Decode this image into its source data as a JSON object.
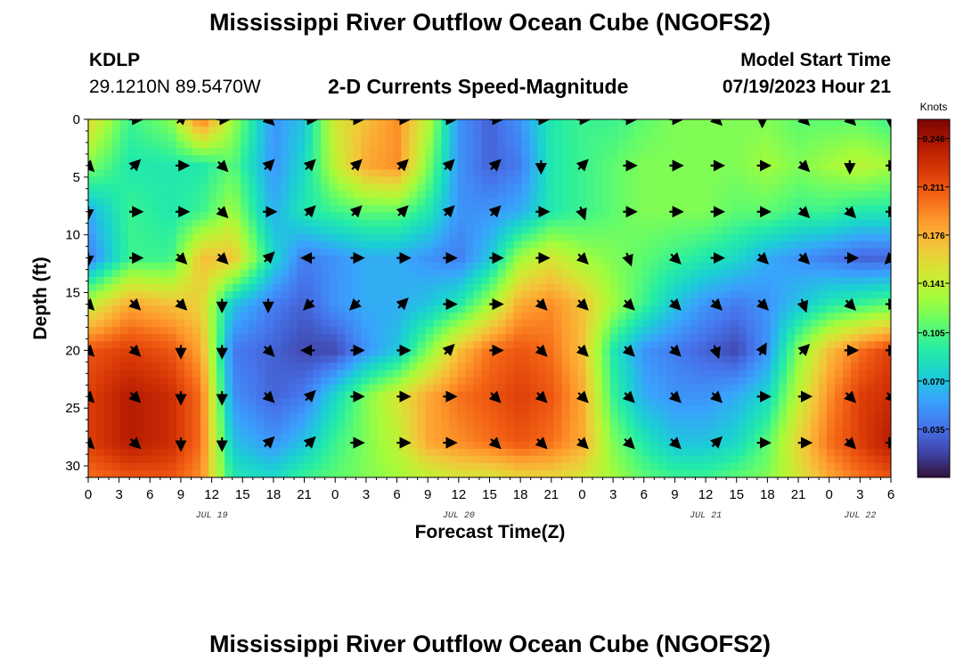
{
  "header": {
    "title": "Mississippi River Outflow Ocean Cube (NGOFS2)",
    "station": "KDLP",
    "coordinates": "29.1210N  89.5470W",
    "subtitle": "2-D Currents Speed-Magnitude",
    "model_start_label": "Model Start Time",
    "model_start_value": "07/19/2023 Hour 21"
  },
  "footer": {
    "title": "Mississippi River Outflow Ocean Cube (NGOFS2)"
  },
  "chart_data": {
    "type": "heatmap",
    "title": "2-D Currents Speed-Magnitude",
    "xlabel": "Forecast Time(Z)",
    "ylabel": "Depth (ft)",
    "xlim": [
      0,
      78
    ],
    "ylim": [
      0,
      31
    ],
    "x_tick_labels": [
      "0",
      "3",
      "6",
      "9",
      "12",
      "15",
      "18",
      "21",
      "0",
      "3",
      "6",
      "9",
      "12",
      "15",
      "18",
      "21",
      "0",
      "3",
      "6",
      "9",
      "12",
      "15",
      "18",
      "21",
      "0",
      "3",
      "6"
    ],
    "y_ticks": [
      0,
      5,
      10,
      15,
      20,
      25,
      30
    ],
    "date_labels": [
      {
        "text": "JUL 19",
        "hour": 12
      },
      {
        "text": "JUL 20",
        "hour": 36
      },
      {
        "text": "JUL 21",
        "hour": 60
      },
      {
        "text": "JUL 22",
        "hour": 75
      }
    ],
    "colorbar": {
      "unit": "Knots",
      "range": [
        0,
        0.26
      ],
      "tick_labels": [
        "0.246",
        "0.211",
        "0.176",
        "0.141",
        "0.105",
        "0.070",
        "0.035"
      ],
      "tick_values": [
        0.246,
        0.211,
        0.176,
        0.141,
        0.105,
        0.07,
        0.035
      ],
      "colors": [
        "#30123b",
        "#4145ab",
        "#4675ed",
        "#39a2fc",
        "#1bcfd4",
        "#24eca6",
        "#61fc6c",
        "#a4fc3b",
        "#d1e834",
        "#f3c63a",
        "#fe9b2d",
        "#f36315",
        "#d93806",
        "#b11901",
        "#7a0403"
      ]
    },
    "speed_depths_ft": [
      0,
      4,
      8,
      12,
      16,
      20,
      24,
      28,
      31
    ],
    "speed_times_h": [
      0,
      4,
      8,
      11,
      14,
      18,
      21,
      24,
      27,
      30,
      33,
      36,
      39,
      42,
      45,
      48,
      51,
      54,
      57,
      60,
      63,
      66,
      69,
      72,
      75,
      78
    ],
    "speed_knots": [
      [
        0.16,
        0.1,
        0.12,
        0.2,
        0.13,
        0.05,
        0.07,
        0.15,
        0.17,
        0.19,
        0.14,
        0.05,
        0.03,
        0.05,
        0.09,
        0.1,
        0.1,
        0.11,
        0.12,
        0.12,
        0.12,
        0.12,
        0.11,
        0.11,
        0.11,
        0.1
      ],
      [
        0.12,
        0.09,
        0.09,
        0.09,
        0.11,
        0.05,
        0.08,
        0.14,
        0.18,
        0.19,
        0.12,
        0.05,
        0.03,
        0.04,
        0.09,
        0.1,
        0.11,
        0.12,
        0.12,
        0.12,
        0.12,
        0.13,
        0.12,
        0.13,
        0.14,
        0.13
      ],
      [
        0.06,
        0.1,
        0.09,
        0.1,
        0.13,
        0.06,
        0.09,
        0.1,
        0.11,
        0.11,
        0.09,
        0.05,
        0.05,
        0.06,
        0.09,
        0.1,
        0.11,
        0.12,
        0.12,
        0.12,
        0.11,
        0.11,
        0.1,
        0.1,
        0.09,
        0.09
      ],
      [
        0.04,
        0.1,
        0.1,
        0.17,
        0.17,
        0.08,
        0.04,
        0.05,
        0.06,
        0.06,
        0.05,
        0.04,
        0.07,
        0.13,
        0.15,
        0.13,
        0.12,
        0.11,
        0.1,
        0.09,
        0.08,
        0.06,
        0.05,
        0.04,
        0.03,
        0.03
      ],
      [
        0.14,
        0.18,
        0.17,
        0.16,
        0.07,
        0.04,
        0.03,
        0.05,
        0.06,
        0.06,
        0.07,
        0.09,
        0.13,
        0.18,
        0.19,
        0.17,
        0.13,
        0.1,
        0.07,
        0.05,
        0.04,
        0.05,
        0.07,
        0.09,
        0.1,
        0.11
      ],
      [
        0.21,
        0.22,
        0.21,
        0.18,
        0.04,
        0.03,
        0.02,
        0.02,
        0.05,
        0.07,
        0.12,
        0.17,
        0.2,
        0.21,
        0.2,
        0.17,
        0.09,
        0.05,
        0.04,
        0.03,
        0.02,
        0.05,
        0.12,
        0.17,
        0.2,
        0.22
      ],
      [
        0.22,
        0.24,
        0.23,
        0.2,
        0.05,
        0.03,
        0.04,
        0.08,
        0.12,
        0.15,
        0.18,
        0.2,
        0.21,
        0.22,
        0.21,
        0.18,
        0.1,
        0.06,
        0.05,
        0.05,
        0.06,
        0.08,
        0.14,
        0.19,
        0.22,
        0.23
      ],
      [
        0.22,
        0.24,
        0.23,
        0.2,
        0.07,
        0.05,
        0.07,
        0.1,
        0.12,
        0.14,
        0.18,
        0.19,
        0.2,
        0.21,
        0.2,
        0.18,
        0.12,
        0.09,
        0.07,
        0.07,
        0.08,
        0.11,
        0.16,
        0.2,
        0.22,
        0.24
      ],
      [
        0.2,
        0.21,
        0.21,
        0.19,
        0.09,
        0.08,
        0.1,
        0.11,
        0.12,
        0.13,
        0.14,
        0.15,
        0.15,
        0.16,
        0.16,
        0.15,
        0.13,
        0.11,
        0.1,
        0.1,
        0.11,
        0.12,
        0.15,
        0.18,
        0.2,
        0.21
      ]
    ],
    "arrow_times_h": [
      0,
      4.5,
      9,
      13,
      17.5,
      21.5,
      26,
      30.5,
      35,
      39.5,
      44,
      48,
      52.5,
      57,
      61,
      65.5,
      69.5,
      74,
      78
    ],
    "arrow_depths_ft": [
      0,
      4,
      8,
      12,
      16,
      20,
      24,
      28
    ],
    "arrow_directions_deg": [
      [
        null,
        90,
        45,
        90,
        135,
        90,
        90,
        90,
        90,
        90,
        90,
        90,
        90,
        90,
        135,
        180,
        135,
        135,
        180
      ],
      [
        135,
        45,
        90,
        135,
        45,
        45,
        45,
        45,
        45,
        45,
        180,
        45,
        90,
        90,
        90,
        90,
        135,
        180,
        90
      ],
      [
        180,
        90,
        90,
        135,
        90,
        45,
        45,
        45,
        45,
        45,
        90,
        160,
        90,
        90,
        90,
        90,
        135,
        135,
        90
      ],
      [
        180,
        90,
        135,
        135,
        45,
        270,
        90,
        90,
        90,
        90,
        90,
        135,
        160,
        135,
        90,
        135,
        135,
        90,
        225
      ],
      [
        135,
        135,
        135,
        180,
        180,
        225,
        225,
        45,
        90,
        90,
        135,
        135,
        135,
        135,
        135,
        135,
        160,
        135,
        90
      ],
      [
        135,
        135,
        180,
        180,
        135,
        270,
        90,
        90,
        45,
        90,
        135,
        135,
        135,
        135,
        160,
        30,
        45,
        90,
        90
      ],
      [
        135,
        135,
        180,
        180,
        135,
        45,
        90,
        90,
        90,
        135,
        135,
        135,
        135,
        135,
        135,
        90,
        90,
        135,
        135
      ],
      [
        135,
        135,
        180,
        180,
        45,
        45,
        90,
        90,
        90,
        135,
        135,
        135,
        135,
        135,
        45,
        90,
        90,
        135,
        90
      ]
    ]
  }
}
